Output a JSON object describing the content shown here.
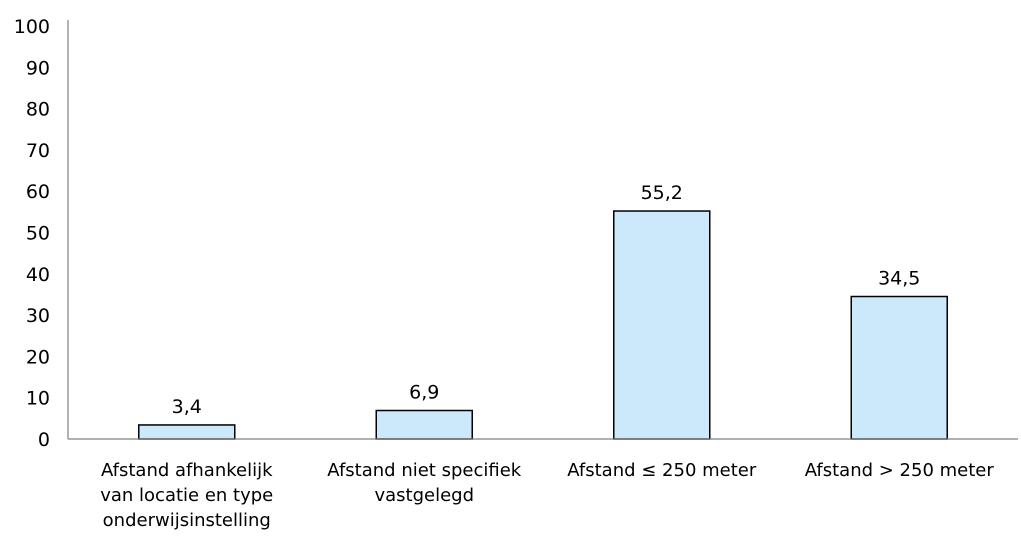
{
  "chart_data": {
    "type": "bar",
    "categories": [
      [
        "Afstand afhankelijk",
        "van locatie en type",
        "onderwijsinstelling"
      ],
      [
        "Afstand niet specifiek",
        "vastgelegd"
      ],
      [
        "Afstand ≤ 250 meter"
      ],
      [
        "Afstand > 250 meter"
      ]
    ],
    "values": [
      3.4,
      6.9,
      55.2,
      34.5
    ],
    "data_labels": [
      "3,4",
      "6,9",
      "55,2",
      "34,5"
    ],
    "yticks": [
      "0",
      "10",
      "20",
      "30",
      "40",
      "50",
      "60",
      "70",
      "80",
      "90",
      "100"
    ],
    "ylim": [
      0,
      100
    ],
    "grid": false,
    "colors": {
      "bar_fill": "#cce9fb",
      "bar_stroke": "#000000",
      "axis": "#808080"
    }
  }
}
